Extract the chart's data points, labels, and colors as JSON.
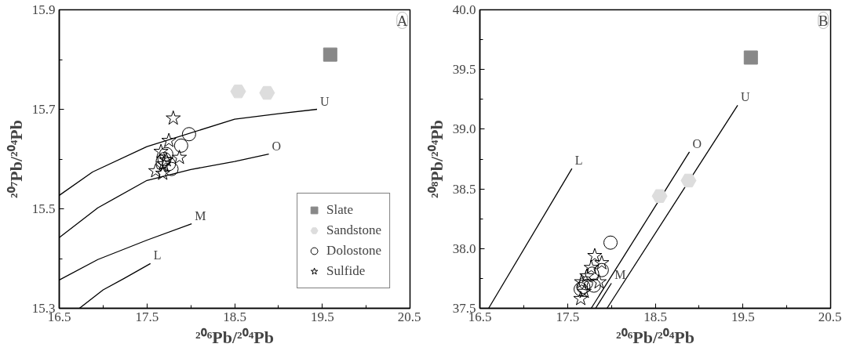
{
  "chart_data": [
    {
      "type": "scatter",
      "xlabel": "²⁰⁶Pb/²⁰⁴Pb",
      "ylabel": "²⁰⁷Pb/²⁰⁴Pb",
      "xlim": [
        16.5,
        20.5
      ],
      "ylim": [
        15.3,
        15.9
      ],
      "xticks": [
        16.5,
        {
          "value": 17,
          "label": null
        },
        17.5,
        {
          "value": 18,
          "label": null
        },
        18.5,
        {
          "value": 19,
          "label": null
        },
        19.5,
        {
          "value": 20,
          "label": null
        },
        20.5
      ],
      "yticks": [
        15.3,
        {
          "value": 15.4,
          "label": null
        },
        15.5,
        {
          "value": 15.6,
          "label": null
        },
        15.7,
        {
          "value": 15.8,
          "label": null
        },
        15.9
      ],
      "grid": false,
      "legend": "bottom right",
      "annotations": [
        "A",
        "U",
        "O",
        "M",
        "L"
      ],
      "series": [
        {
          "type": "line",
          "color": "#000000",
          "x": [
            16.5,
            16.88,
            17.5,
            18.5,
            19.0,
            19.44
          ],
          "values": [
            15.527,
            15.574,
            15.625,
            15.68,
            15.691,
            15.7
          ]
        },
        {
          "type": "line",
          "color": "#000000",
          "x": [
            16.5,
            16.94,
            17.5,
            18.0,
            18.5,
            18.89
          ],
          "values": [
            15.442,
            15.502,
            15.557,
            15.579,
            15.595,
            15.61
          ]
        },
        {
          "type": "line",
          "color": "#000000",
          "x": [
            16.5,
            16.94,
            17.5,
            18.01
          ],
          "values": [
            15.357,
            15.398,
            15.437,
            15.47
          ]
        },
        {
          "type": "line",
          "color": "#000000",
          "x": [
            16.73,
            17.0,
            17.24,
            17.54
          ],
          "values": [
            15.3,
            15.337,
            15.36,
            15.39
          ]
        },
        {
          "name": "Slate",
          "color": "#888888",
          "marker": "square",
          "x": [
            19.59
          ],
          "values": [
            15.81
          ]
        },
        {
          "name": "Sandstone",
          "color": "#dddddd",
          "x": [
            18.54,
            18.87
          ],
          "values": [
            15.736,
            15.733
          ]
        },
        {
          "name": "Dolostone",
          "color": "#000000",
          "marker": "circle",
          "x": [
            17.98,
            17.89,
            17.7,
            17.75,
            17.72,
            17.78,
            17.68
          ],
          "values": [
            15.65,
            15.627,
            15.6,
            15.59,
            15.61,
            15.58,
            15.595
          ]
        },
        {
          "name": "Sulfide",
          "color": "#000000",
          "marker": "star",
          "x": [
            17.8,
            17.75,
            17.66,
            17.87,
            17.6,
            17.68,
            17.72,
            17.69
          ],
          "values": [
            15.682,
            15.637,
            15.615,
            15.603,
            15.576,
            15.571,
            15.598,
            15.59
          ]
        }
      ]
    },
    {
      "type": "scatter",
      "xlabel": "²⁰⁶Pb/²⁰⁴Pb",
      "ylabel": "²⁰⁸Pb/²⁰⁴Pb",
      "xlim": [
        16.5,
        20.5
      ],
      "ylim": [
        37.5,
        40.0
      ],
      "xticks": [
        16.5,
        {
          "value": 17,
          "label": null
        },
        17.5,
        {
          "value": 18,
          "label": null
        },
        18.5,
        {
          "value": 19,
          "label": null
        },
        19.5,
        {
          "value": 20,
          "label": null
        },
        20.5
      ],
      "yticks": [
        37.5,
        {
          "value": 37.75,
          "label": null
        },
        {
          "value": 38,
          "label": "38.0"
        },
        {
          "value": 38.25,
          "label": null
        },
        38.5,
        {
          "value": 38.75,
          "label": null
        },
        {
          "value": 39,
          "label": "39.0"
        },
        {
          "value": 39.25,
          "label": null
        },
        39.5,
        {
          "value": 39.75,
          "label": null
        },
        {
          "value": 40,
          "label": "40.0"
        }
      ],
      "grid": false,
      "legend": false,
      "annotations": [
        "B",
        "L",
        "O",
        "M",
        "U"
      ],
      "series": [
        {
          "type": "line",
          "color": "#000000",
          "x": [
            16.6,
            17.55
          ],
          "values": [
            37.5,
            38.67
          ]
        },
        {
          "type": "line",
          "color": "#000000",
          "x": [
            17.77,
            18.89
          ],
          "values": [
            37.5,
            38.81
          ]
        },
        {
          "type": "line",
          "color": "#000000",
          "x": [
            17.82,
            18.0
          ],
          "values": [
            37.5,
            37.71
          ]
        },
        {
          "type": "line",
          "color": "#000000",
          "x": [
            17.95,
            19.44
          ],
          "values": [
            37.5,
            39.2
          ]
        },
        {
          "color": "#888888",
          "marker": "square",
          "x": [
            19.59
          ],
          "values": [
            39.6
          ]
        },
        {
          "color": "#dddddd",
          "x": [
            18.55,
            18.88
          ],
          "values": [
            38.44,
            38.57
          ]
        },
        {
          "color": "#000000",
          "marker": "circle",
          "x": [
            17.99,
            17.89,
            17.78,
            17.8,
            17.71,
            17.65,
            17.68
          ],
          "values": [
            38.05,
            37.82,
            37.79,
            37.69,
            37.71,
            37.66,
            37.68
          ]
        },
        {
          "color": "#000000",
          "marker": "star",
          "x": [
            17.81,
            17.89,
            17.77,
            17.86,
            17.65,
            17.72,
            17.69,
            17.66
          ],
          "values": [
            37.94,
            37.88,
            37.84,
            37.72,
            37.58,
            37.77,
            37.64,
            37.72
          ]
        }
      ]
    }
  ]
}
